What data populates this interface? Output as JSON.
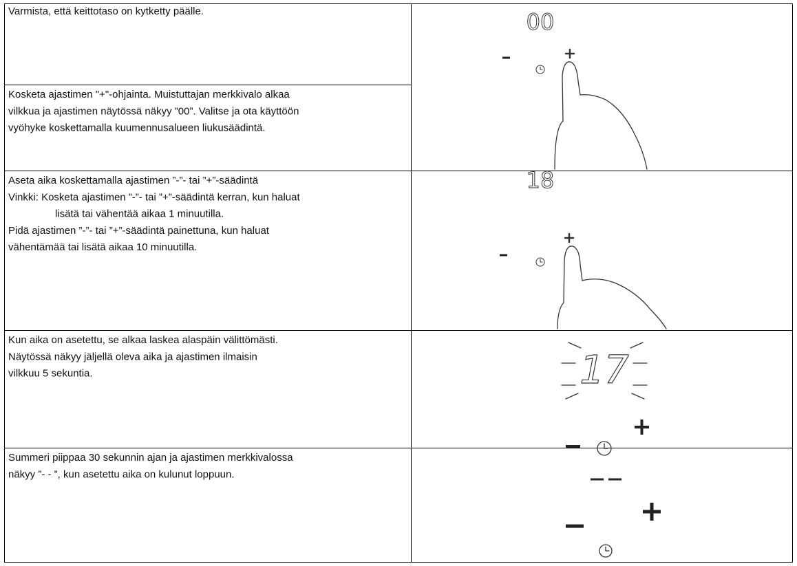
{
  "steps": [
    {
      "cells": [
        [
          "Varmista, että keittotaso on kytketty päälle."
        ],
        [
          "Kosketa ajastimen \"+\"-ohjainta. Muistuttajan merkkivalo alkaa",
          "vilkkua ja ajastimen näytössä näkyy ”00”. Valitse ja ota käyttöön",
          "vyöhyke koskettamalla kuumennusalueen liukusäädintä."
        ]
      ],
      "display": "00"
    },
    {
      "cells": [
        [
          "Aseta aika koskettamalla ajastimen ”-”- tai ”+”-säädintä",
          "Vinkki: Kosketa ajastimen ”-”- tai ”+”-säädintä kerran, kun haluat",
          "lisätä tai vähentää aikaa 1 minuutilla.",
          "Pidä ajastimen ”-”- tai ”+”-säädintä painettuna, kun haluat",
          "vähentämää tai lisätä aikaa 10 minuutilla."
        ]
      ],
      "display": "18"
    },
    {
      "cells": [
        [
          "Kun aika on asetettu, se alkaa laskea alaspäin välittömästi.",
          "Näytössä näkyy jäljellä oleva aika ja ajastimen ilmaisin",
          "vilkkuu 5 sekuntia."
        ]
      ],
      "display": "17"
    },
    {
      "cells": [
        [
          "Summeri piippaa 30 sekunnin ajan ja ajastimen merkkivalossa",
          "näkyy ”- - ”, kun asetettu aika on kulunut loppuun."
        ]
      ]
    }
  ]
}
